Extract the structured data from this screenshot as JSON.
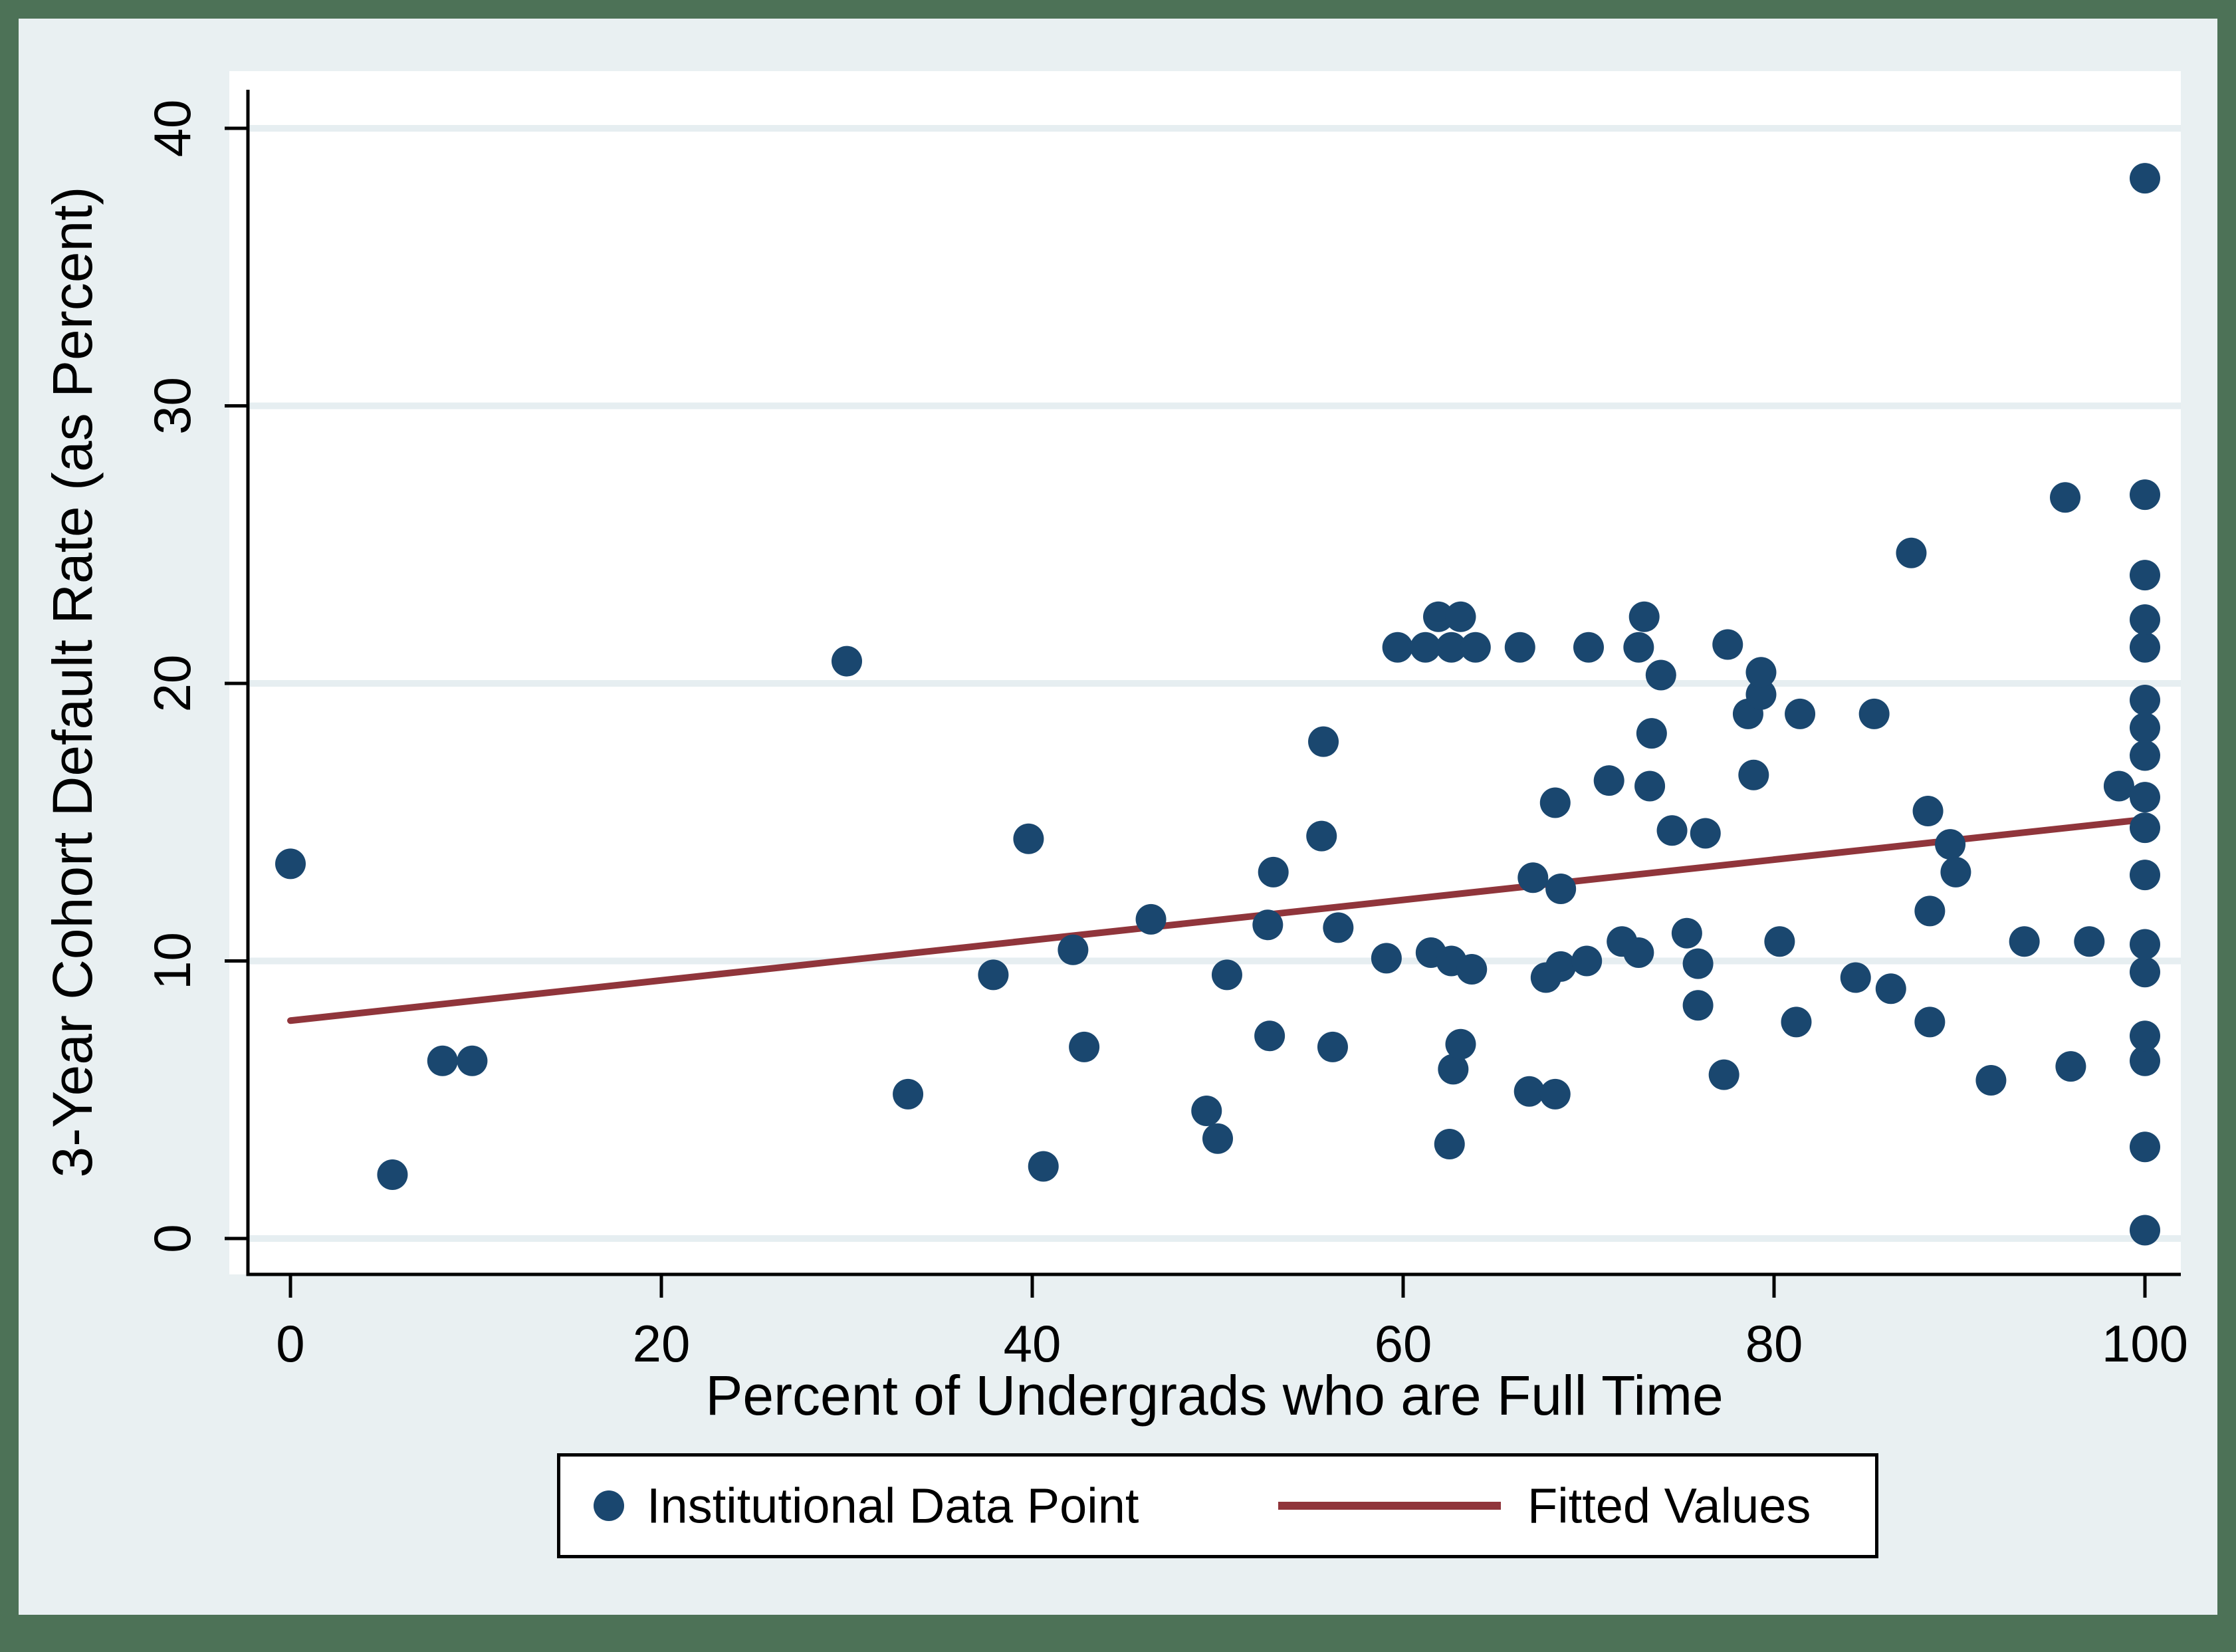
{
  "figure": {
    "frame_color": "#4d7257",
    "background_color": "#e9f0f2",
    "plot_background": "#ffffff",
    "grid_color": "#e6eef1",
    "axis_color": "#000000",
    "marker_color": "#1a476f",
    "fit_line_color": "#90353b"
  },
  "chart_data": {
    "type": "scatter",
    "title": "",
    "xlabel": "Percent of Undergrads who are Full Time",
    "ylabel": "3-Year Cohort Default Rate (as Percent)",
    "xlim": [
      0,
      100
    ],
    "ylim": [
      0,
      40
    ],
    "x_ticks": [
      "0",
      "20",
      "40",
      "60",
      "80",
      "100"
    ],
    "x_tick_values": [
      0,
      20,
      40,
      60,
      80,
      100
    ],
    "y_ticks": [
      "0",
      "10",
      "20",
      "30",
      "40"
    ],
    "y_tick_values": [
      0,
      10,
      20,
      30,
      40
    ],
    "grid": "horizontal",
    "legend_position": "bottom",
    "series": [
      {
        "name": "Institutional Data Point",
        "kind": "scatter",
        "color": "#1a476f",
        "points": [
          [
            0,
            13.5
          ],
          [
            5.5,
            2.3
          ],
          [
            8.2,
            6.4
          ],
          [
            9.8,
            6.4
          ],
          [
            30,
            20.8
          ],
          [
            33.3,
            5.2
          ],
          [
            37.9,
            9.5
          ],
          [
            39.8,
            14.4
          ],
          [
            40.6,
            2.6
          ],
          [
            42.2,
            10.4
          ],
          [
            42.8,
            6.9
          ],
          [
            46.4,
            11.5
          ],
          [
            49.4,
            4.6
          ],
          [
            50,
            3.6
          ],
          [
            50.5,
            9.5
          ],
          [
            52.7,
            11.3
          ],
          [
            52.8,
            7.3
          ],
          [
            53,
            13.2
          ],
          [
            55.6,
            14.5
          ],
          [
            55.7,
            17.9
          ],
          [
            56.2,
            6.9
          ],
          [
            56.5,
            11.2
          ],
          [
            59.1,
            10.1
          ],
          [
            59.7,
            21.3
          ],
          [
            61.2,
            21.3
          ],
          [
            61.5,
            10.3
          ],
          [
            61.9,
            22.4
          ],
          [
            62.5,
            3.4
          ],
          [
            62.6,
            10
          ],
          [
            62.6,
            21.3
          ],
          [
            62.7,
            6.1
          ],
          [
            63.1,
            7
          ],
          [
            63.1,
            22.4
          ],
          [
            63.7,
            9.7
          ],
          [
            63.9,
            21.3
          ],
          [
            66.3,
            21.3
          ],
          [
            66.8,
            5.3
          ],
          [
            67,
            13
          ],
          [
            67.7,
            9.4
          ],
          [
            68.2,
            5.2
          ],
          [
            68.2,
            15.7
          ],
          [
            68.5,
            9.8
          ],
          [
            68.5,
            12.6
          ],
          [
            69.9,
            10
          ],
          [
            70,
            21.3
          ],
          [
            71.1,
            16.5
          ],
          [
            71.8,
            10.7
          ],
          [
            72.7,
            10.3
          ],
          [
            72.7,
            21.3
          ],
          [
            73,
            22.4
          ],
          [
            73.3,
            16.3
          ],
          [
            73.4,
            18.2
          ],
          [
            73.9,
            20.3
          ],
          [
            74.5,
            14.7
          ],
          [
            75.3,
            11
          ],
          [
            75.9,
            8.4
          ],
          [
            75.9,
            9.9
          ],
          [
            76.3,
            14.6
          ],
          [
            77.3,
            5.9
          ],
          [
            77.5,
            21.4
          ],
          [
            78.6,
            18.9
          ],
          [
            78.9,
            16.7
          ],
          [
            79.3,
            19.6
          ],
          [
            79.3,
            20.4
          ],
          [
            80.3,
            10.7
          ],
          [
            81.2,
            7.8
          ],
          [
            81.4,
            18.9
          ],
          [
            84.4,
            9.4
          ],
          [
            85.4,
            18.9
          ],
          [
            86.3,
            9
          ],
          [
            87.4,
            24.7
          ],
          [
            88.3,
            15.4
          ],
          [
            88.4,
            7.8
          ],
          [
            88.4,
            11.8
          ],
          [
            89.5,
            14.2
          ],
          [
            89.8,
            13.2
          ],
          [
            91.7,
            5.7
          ],
          [
            93.5,
            10.7
          ],
          [
            95.7,
            26.7
          ],
          [
            96,
            6.2
          ],
          [
            97,
            10.7
          ],
          [
            98.6,
            16.3
          ],
          [
            100,
            0.3
          ],
          [
            100,
            3.3
          ],
          [
            100,
            6.4
          ],
          [
            100,
            7.3
          ],
          [
            100,
            9.6
          ],
          [
            100,
            10.6
          ],
          [
            100,
            13.1
          ],
          [
            100,
            14.8
          ],
          [
            100,
            15.9
          ],
          [
            100,
            17.4
          ],
          [
            100,
            18.4
          ],
          [
            100,
            19.4
          ],
          [
            100,
            21.3
          ],
          [
            100,
            22.3
          ],
          [
            100,
            23.9
          ],
          [
            100,
            26.8
          ],
          [
            100,
            38.2
          ]
        ]
      },
      {
        "name": "Fitted Values",
        "kind": "line",
        "color": "#90353b",
        "points": [
          [
            0,
            7.85
          ],
          [
            100,
            15.1
          ]
        ]
      }
    ]
  },
  "legend": {
    "points_label": "Institutional Data Point",
    "fit_label": "Fitted Values"
  }
}
